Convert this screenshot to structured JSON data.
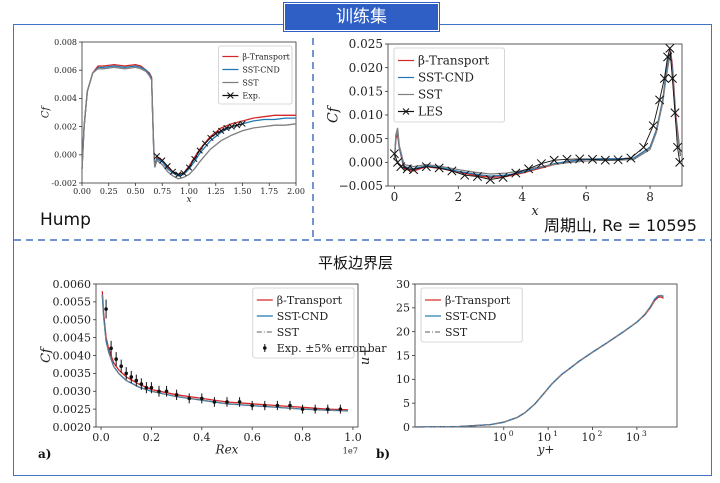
{
  "page": {
    "banner": "训练集",
    "hump_label": "Hump",
    "hill_label": "周期山, Re = 10595",
    "flatplate_title": "平板边界层",
    "panel_a": "a)",
    "panel_b": "b)"
  },
  "colors": {
    "frame": "#4472c4",
    "banner": "#2f5fc4"
  },
  "chart_data": [
    {
      "type": "line",
      "name": "hump",
      "xlabel": "x",
      "ylabel": "Cf",
      "xlim": [
        0.0,
        2.0
      ],
      "ylim": [
        -0.002,
        0.008
      ],
      "xticks": [
        "0.00",
        "0.25",
        "0.50",
        "0.75",
        "1.00",
        "1.25",
        "1.50",
        "1.75",
        "2.00"
      ],
      "yticks": [
        "-0.002",
        "0.000",
        "0.002",
        "0.004",
        "0.006",
        "0.008"
      ],
      "legend": "top-right",
      "series": [
        {
          "name": "β-Transport",
          "color": "#d62728",
          "x": [
            0,
            0.02,
            0.05,
            0.1,
            0.13,
            0.15,
            0.2,
            0.3,
            0.4,
            0.5,
            0.55,
            0.6,
            0.63,
            0.65,
            0.66,
            0.67,
            0.68,
            0.7,
            0.75,
            0.8,
            0.85,
            0.9,
            0.95,
            1.0,
            1.05,
            1.1,
            1.2,
            1.3,
            1.4,
            1.5,
            1.6,
            1.7,
            1.8,
            1.9,
            2.0
          ],
          "y": [
            -0.001,
            0.002,
            0.0045,
            0.0058,
            0.0061,
            0.0063,
            0.0063,
            0.0064,
            0.0063,
            0.0064,
            0.0063,
            0.006,
            0.0058,
            0.0055,
            0.003,
            0.0005,
            -0.0008,
            -0.0002,
            -0.0004,
            -0.0009,
            -0.0012,
            -0.0014,
            -0.0013,
            -0.0008,
            -0.0002,
            0.0004,
            0.0013,
            0.0019,
            0.0022,
            0.0024,
            0.0026,
            0.0027,
            0.0028,
            0.0028,
            0.0028
          ]
        },
        {
          "name": "SST-CND",
          "color": "#1f77b4",
          "x": [
            0,
            0.02,
            0.05,
            0.1,
            0.13,
            0.15,
            0.2,
            0.3,
            0.4,
            0.5,
            0.55,
            0.6,
            0.63,
            0.65,
            0.66,
            0.67,
            0.68,
            0.7,
            0.75,
            0.8,
            0.85,
            0.9,
            0.95,
            1.0,
            1.05,
            1.1,
            1.2,
            1.3,
            1.4,
            1.5,
            1.6,
            1.7,
            1.8,
            1.9,
            2.0
          ],
          "y": [
            -0.001,
            0.002,
            0.0045,
            0.0058,
            0.006,
            0.0062,
            0.0062,
            0.0063,
            0.0062,
            0.0063,
            0.0062,
            0.006,
            0.0057,
            0.0054,
            0.003,
            0.0005,
            -0.0008,
            -0.0003,
            -0.0005,
            -0.001,
            -0.0013,
            -0.0015,
            -0.0014,
            -0.001,
            -0.0005,
            0.0001,
            0.001,
            0.0016,
            0.002,
            0.0022,
            0.0024,
            0.0025,
            0.0025,
            0.0026,
            0.0026
          ]
        },
        {
          "name": "SST",
          "color": "#7f7f7f",
          "x": [
            0,
            0.02,
            0.05,
            0.1,
            0.13,
            0.15,
            0.2,
            0.3,
            0.4,
            0.5,
            0.55,
            0.6,
            0.63,
            0.65,
            0.66,
            0.67,
            0.68,
            0.7,
            0.75,
            0.8,
            0.85,
            0.9,
            0.95,
            1.0,
            1.05,
            1.1,
            1.2,
            1.3,
            1.4,
            1.5,
            1.6,
            1.7,
            1.8,
            1.9,
            2.0
          ],
          "y": [
            -0.001,
            0.002,
            0.0045,
            0.0058,
            0.006,
            0.0061,
            0.0061,
            0.0062,
            0.0061,
            0.0062,
            0.0061,
            0.0059,
            0.0056,
            0.0053,
            0.003,
            0.0003,
            -0.0009,
            -0.0004,
            -0.0007,
            -0.0012,
            -0.0015,
            -0.0017,
            -0.0016,
            -0.0014,
            -0.001,
            -0.0005,
            0.0004,
            0.001,
            0.0014,
            0.0017,
            0.0019,
            0.002,
            0.0021,
            0.0021,
            0.0022
          ]
        },
        {
          "name": "Exp.",
          "color": "#111111",
          "marker": "x",
          "x": [
            0.7,
            0.75,
            0.8,
            0.85,
            0.9,
            0.95,
            1.0,
            1.05,
            1.1,
            1.15,
            1.2,
            1.25,
            1.3,
            1.35,
            1.4,
            1.45,
            1.5
          ],
          "y": [
            -0.0001,
            -0.0004,
            -0.0008,
            -0.0012,
            -0.0014,
            -0.0013,
            -0.0009,
            -0.0003,
            0.0003,
            0.0008,
            0.0012,
            0.0015,
            0.0017,
            0.0019,
            0.002,
            0.0021,
            0.0022
          ]
        }
      ]
    },
    {
      "type": "line",
      "name": "periodic-hill",
      "xlabel": "x",
      "ylabel": "Cf",
      "xlim": [
        -0.2,
        9.0
      ],
      "ylim": [
        -0.005,
        0.028
      ],
      "xticks": [
        "0",
        "2",
        "4",
        "6",
        "8"
      ],
      "yticks": [
        "−0.005",
        "0.000",
        "0.005",
        "0.010",
        "0.015",
        "0.020",
        "0.025"
      ],
      "legend": "top-left",
      "series": [
        {
          "name": "β-Transport",
          "color": "#d62728",
          "x": [
            0,
            0.05,
            0.1,
            0.15,
            0.3,
            0.6,
            1,
            1.5,
            2,
            2.5,
            3,
            3.5,
            4,
            4.5,
            5,
            5.5,
            6,
            6.5,
            7,
            7.5,
            8,
            8.2,
            8.4,
            8.5,
            8.6,
            8.65,
            8.7,
            8.8,
            8.95
          ],
          "y": [
            0.001,
            0.006,
            0.007,
            0.004,
            -0.001,
            -0.0015,
            -0.0005,
            -0.001,
            -0.0018,
            -0.0025,
            -0.003,
            -0.0028,
            -0.002,
            -0.001,
            0.0,
            0.0008,
            0.0012,
            0.0013,
            0.0013,
            0.0015,
            0.004,
            0.008,
            0.015,
            0.021,
            0.0255,
            0.026,
            0.023,
            0.012,
            0.002
          ]
        },
        {
          "name": "SST-CND",
          "color": "#1f77b4",
          "x": [
            0,
            0.05,
            0.1,
            0.15,
            0.3,
            0.6,
            1,
            1.5,
            2,
            2.5,
            3,
            3.5,
            4,
            4.5,
            5,
            5.5,
            6,
            6.5,
            7,
            7.5,
            8,
            8.2,
            8.4,
            8.5,
            8.6,
            8.65,
            8.7,
            8.8,
            8.95
          ],
          "y": [
            0.001,
            0.007,
            0.008,
            0.004,
            -0.0005,
            -0.001,
            -0.0003,
            -0.0008,
            -0.0016,
            -0.0022,
            -0.0027,
            -0.0025,
            -0.0018,
            -0.0008,
            0.0002,
            0.0008,
            0.0012,
            0.0013,
            0.0013,
            0.0015,
            0.004,
            0.008,
            0.015,
            0.021,
            0.025,
            0.0255,
            0.022,
            0.011,
            0.002
          ]
        },
        {
          "name": "SST",
          "color": "#7f7f7f",
          "x": [
            0,
            0.05,
            0.1,
            0.15,
            0.3,
            0.6,
            1,
            1.5,
            2,
            2.5,
            3,
            3.5,
            4,
            4.5,
            5,
            5.5,
            6,
            6.5,
            7,
            7.5,
            8,
            8.2,
            8.4,
            8.5,
            8.6,
            8.65,
            8.7,
            8.8,
            8.95
          ],
          "y": [
            0.001,
            0.007,
            0.0085,
            0.0045,
            0.0,
            -0.0005,
            0.0,
            -0.0005,
            -0.0012,
            -0.0018,
            -0.0022,
            -0.002,
            -0.0014,
            -0.0006,
            0.0,
            0.0005,
            0.0008,
            0.001,
            0.001,
            0.0012,
            0.0035,
            0.0075,
            0.0145,
            0.02,
            0.0245,
            0.025,
            0.021,
            0.0105,
            0.002
          ]
        },
        {
          "name": "LES",
          "color": "#111111",
          "marker": "x",
          "x": [
            0,
            0.1,
            0.2,
            0.4,
            0.6,
            1,
            1.4,
            1.8,
            2.2,
            2.6,
            3,
            3.4,
            3.8,
            4.2,
            4.6,
            5,
            5.4,
            5.8,
            6.2,
            6.6,
            7,
            7.4,
            7.8,
            8.1,
            8.3,
            8.45,
            8.55,
            8.62,
            8.7,
            8.78,
            8.86,
            8.93
          ],
          "y": [
            0.0025,
            0.0005,
            -0.0005,
            -0.001,
            -0.0012,
            -0.0005,
            -0.0008,
            -0.0015,
            -0.0025,
            -0.0028,
            -0.0035,
            -0.003,
            -0.002,
            -0.001,
            0.0002,
            0.001,
            0.0012,
            0.0013,
            0.0012,
            0.001,
            0.0011,
            0.0015,
            0.004,
            0.009,
            0.015,
            0.02,
            0.025,
            0.027,
            0.02,
            0.012,
            0.004,
            0.0005
          ]
        }
      ]
    },
    {
      "type": "line",
      "name": "flat-plate-cf",
      "xlabel": "Rex",
      "ylabel": "Cf",
      "x_multiplier": "1e7",
      "xlim": [
        -0.02,
        1.02
      ],
      "ylim": [
        0.002,
        0.006
      ],
      "xticks": [
        "0.0",
        "0.2",
        "0.4",
        "0.6",
        "0.8",
        "1.0"
      ],
      "yticks": [
        "0.0020",
        "0.0025",
        "0.0030",
        "0.0035",
        "0.0040",
        "0.0045",
        "0.0050",
        "0.0055",
        "0.0060"
      ],
      "legend": "upper-right",
      "series": [
        {
          "name": "β-Transport",
          "color": "#d62728",
          "x": [
            0.005,
            0.01,
            0.02,
            0.03,
            0.05,
            0.07,
            0.1,
            0.15,
            0.2,
            0.3,
            0.4,
            0.5,
            0.6,
            0.7,
            0.8,
            0.9,
            0.98
          ],
          "y": [
            0.0058,
            0.0052,
            0.0045,
            0.0042,
            0.0038,
            0.0036,
            0.0034,
            0.0032,
            0.00305,
            0.0029,
            0.0028,
            0.0027,
            0.00265,
            0.0026,
            0.00255,
            0.0025,
            0.00248
          ]
        },
        {
          "name": "SST-CND",
          "color": "#1f77b4",
          "x": [
            0.005,
            0.01,
            0.02,
            0.03,
            0.05,
            0.07,
            0.1,
            0.15,
            0.2,
            0.3,
            0.4,
            0.5,
            0.6,
            0.7,
            0.8,
            0.9,
            0.98
          ],
          "y": [
            0.0057,
            0.0051,
            0.0044,
            0.0041,
            0.0037,
            0.0035,
            0.0033,
            0.00312,
            0.003,
            0.00285,
            0.00275,
            0.00265,
            0.0026,
            0.00255,
            0.0025,
            0.00247,
            0.00245
          ]
        },
        {
          "name": "SST",
          "color": "#7f7f7f",
          "dash": "dashdot",
          "x": [
            0.005,
            0.01,
            0.02,
            0.03,
            0.05,
            0.07,
            0.1,
            0.15,
            0.2,
            0.3,
            0.4,
            0.5,
            0.6,
            0.7,
            0.8,
            0.9,
            0.98
          ],
          "y": [
            0.0057,
            0.0051,
            0.0044,
            0.0041,
            0.0037,
            0.0035,
            0.0033,
            0.00312,
            0.003,
            0.00285,
            0.00275,
            0.00265,
            0.0026,
            0.00255,
            0.0025,
            0.00247,
            0.00245
          ]
        },
        {
          "name": "Exp. ±5% error bar",
          "color": "#111111",
          "marker": "errorbar",
          "x": [
            0.02,
            0.04,
            0.06,
            0.08,
            0.1,
            0.12,
            0.14,
            0.16,
            0.18,
            0.2,
            0.23,
            0.26,
            0.3,
            0.35,
            0.4,
            0.45,
            0.5,
            0.55,
            0.6,
            0.65,
            0.7,
            0.75,
            0.8,
            0.85,
            0.9,
            0.95
          ],
          "y": [
            0.0053,
            0.0042,
            0.0039,
            0.0037,
            0.0035,
            0.0034,
            0.0033,
            0.0032,
            0.0031,
            0.0031,
            0.003,
            0.003,
            0.0029,
            0.0028,
            0.0028,
            0.0027,
            0.0027,
            0.0027,
            0.0026,
            0.0026,
            0.0026,
            0.0026,
            0.0025,
            0.0025,
            0.0025,
            0.0025
          ]
        }
      ]
    },
    {
      "type": "line",
      "name": "flat-plate-uplus",
      "xlabel": "y+",
      "ylabel": "u+",
      "xscale": "log",
      "xlim": [
        0.01,
        8000
      ],
      "ylim": [
        0,
        30
      ],
      "xticks": [
        "10^0",
        "10^1",
        "10^2",
        "10^3"
      ],
      "yticks": [
        "0",
        "5",
        "10",
        "15",
        "20",
        "25",
        "30"
      ],
      "legend": "upper-left",
      "series": [
        {
          "name": "β-Transport",
          "color": "#d62728",
          "x": [
            0.01,
            0.1,
            0.5,
            1,
            2,
            3,
            5,
            8,
            12,
            20,
            30,
            50,
            100,
            200,
            500,
            1000,
            1500,
            2000,
            2500,
            3000,
            3500,
            4000
          ],
          "y": [
            0.01,
            0.1,
            0.5,
            1,
            2,
            3,
            4.8,
            7,
            9,
            11,
            12.2,
            13.8,
            15.7,
            17.5,
            20,
            22,
            23.5,
            25,
            26.5,
            27.2,
            27.3,
            27
          ]
        },
        {
          "name": "SST-CND",
          "color": "#1f77b4",
          "x": [
            0.01,
            0.1,
            0.5,
            1,
            2,
            3,
            5,
            8,
            12,
            20,
            30,
            50,
            100,
            200,
            500,
            1000,
            1500,
            2000,
            2500,
            3000,
            3500,
            4000
          ],
          "y": [
            0.01,
            0.1,
            0.5,
            1,
            2,
            3,
            4.8,
            7,
            9,
            11,
            12.2,
            13.8,
            15.7,
            17.5,
            20,
            22,
            23.6,
            25.2,
            26.8,
            27.5,
            27.6,
            27.4
          ]
        },
        {
          "name": "SST",
          "color": "#7f7f7f",
          "dash": "dashdot",
          "x": [
            0.01,
            0.1,
            0.5,
            1,
            2,
            3,
            5,
            8,
            12,
            20,
            30,
            50,
            100,
            200,
            500,
            1000,
            1500,
            2000,
            2500,
            3000,
            3500,
            4000
          ],
          "y": [
            0.01,
            0.1,
            0.5,
            1,
            2,
            3,
            4.8,
            7,
            9,
            11,
            12.2,
            13.8,
            15.7,
            17.5,
            20,
            22,
            23.6,
            25.2,
            26.8,
            27.5,
            27.6,
            27.4
          ]
        }
      ]
    }
  ]
}
